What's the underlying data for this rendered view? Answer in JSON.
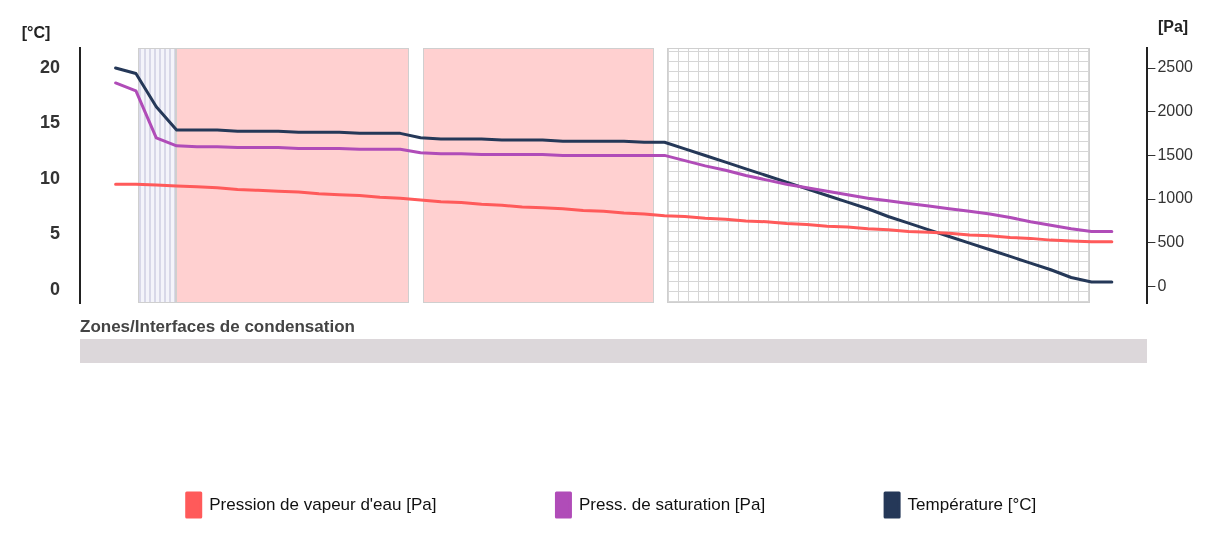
{
  "chart_data": {
    "type": "line",
    "ylabel": "[°C]",
    "y2label": "[Pa]",
    "annotations": [
      "Zones/Interfaces de condensation"
    ],
    "categories": [
      null,
      null,
      null,
      null,
      null,
      null,
      null,
      null,
      null,
      null,
      null,
      null,
      null,
      null,
      null,
      null,
      null,
      null,
      null,
      null,
      null,
      null,
      null,
      null,
      null,
      null,
      null,
      null,
      null,
      null,
      null,
      null,
      null,
      null,
      null,
      null,
      null,
      null,
      null,
      null,
      null,
      null,
      null,
      null,
      null,
      null,
      null,
      null,
      null,
      null
    ],
    "series": [
      {
        "name": "Pression de vapeur d'eau [Pa]",
        "color": "#ff5a5a",
        "axis": "y2",
        "values": [
          1170,
          1170,
          1160,
          1150,
          1140,
          1130,
          1110,
          1100,
          1090,
          1080,
          1060,
          1050,
          1040,
          1020,
          1010,
          990,
          970,
          960,
          940,
          930,
          910,
          900,
          890,
          870,
          860,
          840,
          830,
          810,
          800,
          780,
          770,
          750,
          740,
          720,
          710,
          690,
          680,
          660,
          650,
          630,
          620,
          610,
          590,
          580,
          560,
          550,
          530,
          520,
          510,
          510
        ]
      },
      {
        "name": "Press. de saturation [Pa]",
        "color": "#b04cb8",
        "axis": "y2",
        "values": [
          2330,
          2240,
          1700,
          1610,
          1600,
          1600,
          1590,
          1590,
          1590,
          1580,
          1580,
          1580,
          1570,
          1570,
          1570,
          1530,
          1520,
          1520,
          1510,
          1510,
          1510,
          1510,
          1500,
          1500,
          1500,
          1500,
          1500,
          1500,
          1440,
          1380,
          1330,
          1270,
          1220,
          1170,
          1130,
          1090,
          1050,
          1010,
          980,
          950,
          920,
          890,
          860,
          830,
          790,
          740,
          700,
          660,
          630,
          630
        ]
      },
      {
        "name": "Température [°C]",
        "color": "#253858",
        "axis": "y",
        "values": [
          20,
          19.5,
          16.5,
          14.4,
          14.4,
          14.4,
          14.3,
          14.3,
          14.3,
          14.2,
          14.2,
          14.2,
          14.1,
          14.1,
          14.1,
          13.7,
          13.6,
          13.6,
          13.6,
          13.5,
          13.5,
          13.5,
          13.4,
          13.4,
          13.4,
          13.4,
          13.3,
          13.3,
          12.7,
          12.1,
          11.5,
          10.9,
          10.3,
          9.7,
          9.1,
          8.5,
          7.9,
          7.3,
          6.6,
          6.0,
          5.4,
          4.8,
          4.2,
          3.6,
          3.0,
          2.4,
          1.8,
          1.1,
          0.7,
          0.7
        ]
      }
    ],
    "ylim": [
      -1.2,
      21.8
    ],
    "yticks": [
      0,
      5,
      10,
      15,
      20
    ],
    "y2lim": [
      -190,
      2730
    ],
    "y2ticks": [
      0,
      500,
      1000,
      1500,
      2000,
      2500
    ],
    "legend": "bottom",
    "marker": "none"
  }
}
